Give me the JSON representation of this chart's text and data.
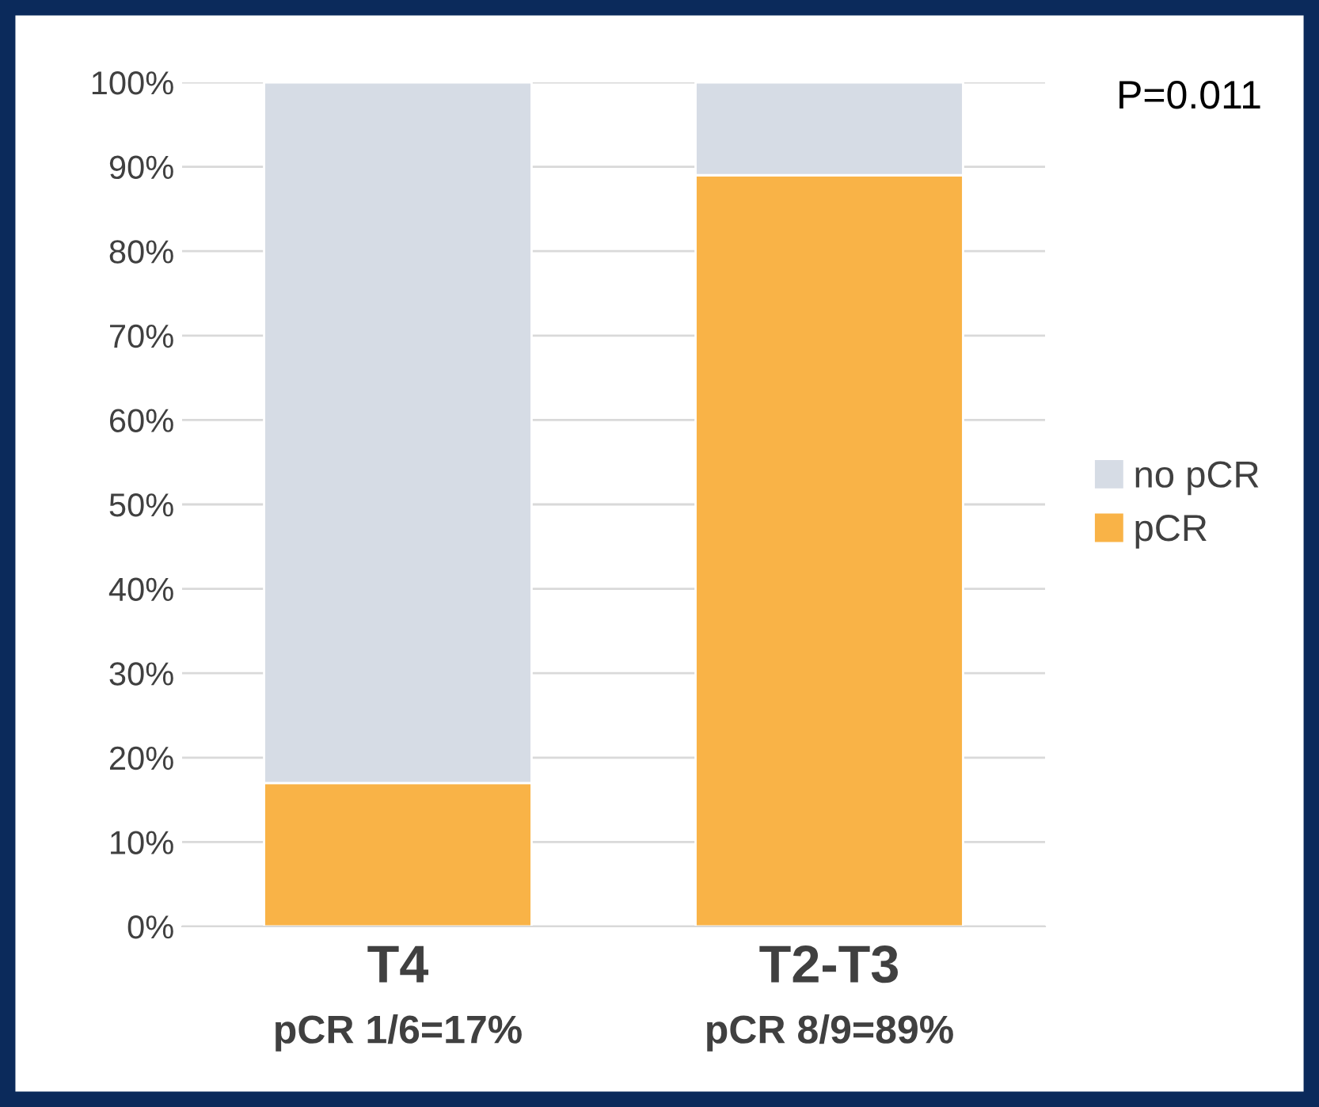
{
  "chart_data": {
    "type": "bar",
    "stacked": true,
    "categories": [
      "T4",
      "T2-T3"
    ],
    "series": [
      {
        "name": "pCR",
        "color": "#f9b347",
        "values": [
          17,
          89
        ]
      },
      {
        "name": "no pCR",
        "color": "#d6dce5",
        "values": [
          83,
          11
        ]
      }
    ],
    "ylim": [
      0,
      100
    ],
    "yticks": [
      {
        "value": 0,
        "label": "0%"
      },
      {
        "value": 10,
        "label": "10%"
      },
      {
        "value": 20,
        "label": "20%"
      },
      {
        "value": 30,
        "label": "30%"
      },
      {
        "value": 40,
        "label": "40%"
      },
      {
        "value": 50,
        "label": "50%"
      },
      {
        "value": 60,
        "label": "60%"
      },
      {
        "value": 70,
        "label": "70%"
      },
      {
        "value": 80,
        "label": "80%"
      },
      {
        "value": 90,
        "label": "90%"
      },
      {
        "value": 100,
        "label": "100%"
      }
    ],
    "grid": "y",
    "legend": "right",
    "annotations": [
      "pCR 1/6=17%",
      "pCR 8/9=89%",
      "P=0.011"
    ]
  }
}
